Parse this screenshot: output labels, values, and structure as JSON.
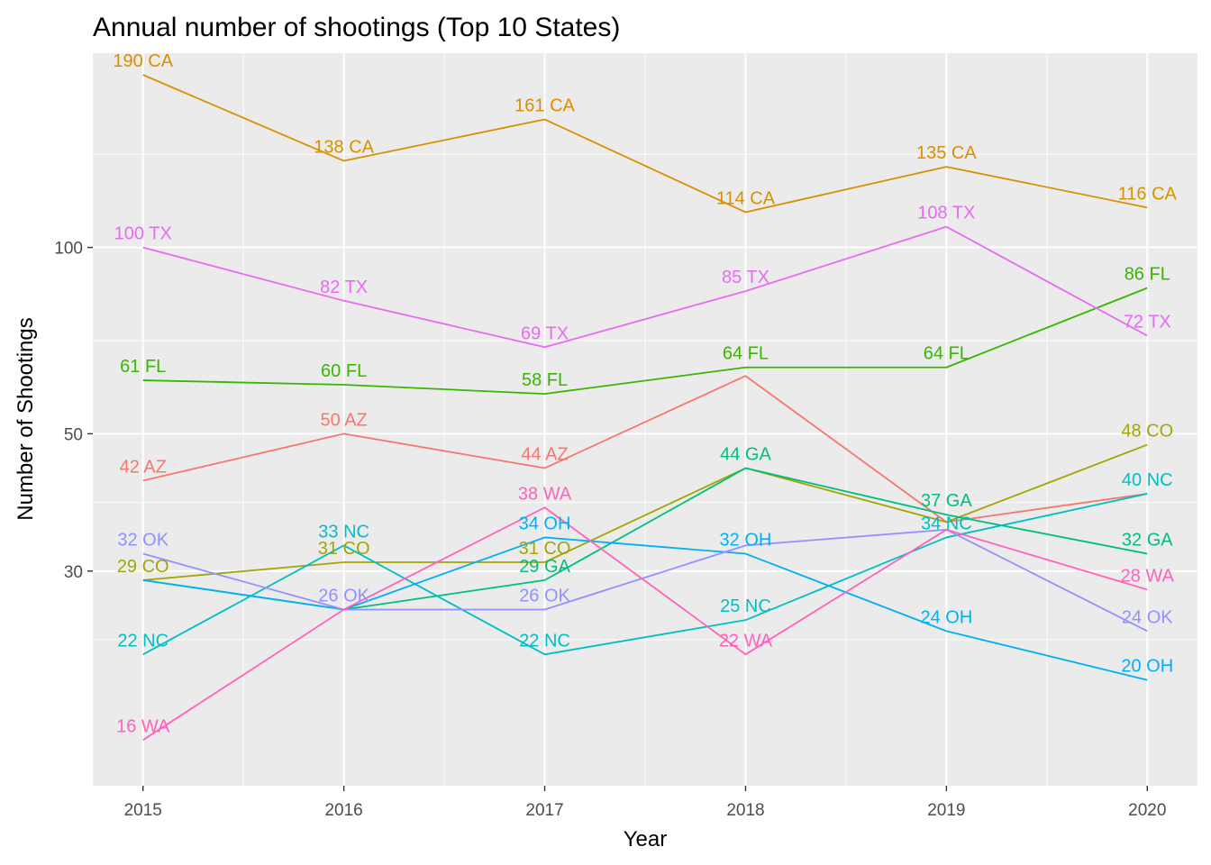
{
  "chart_data": {
    "type": "line",
    "title": "Annual number of shootings (Top 10 States)",
    "xlabel": "Year",
    "ylabel": "Number of Shootings",
    "x": [
      2015,
      2016,
      2017,
      2018,
      2019,
      2020
    ],
    "y_scale": "log",
    "xlim": [
      2014.75,
      2020.25
    ],
    "ylim": [
      13.5,
      206
    ],
    "y_ticks": [
      30,
      50,
      100
    ],
    "grid": true,
    "legend": "none",
    "series": [
      {
        "name": "AZ",
        "color": "#F8766D",
        "values": [
          42,
          50,
          44,
          62,
          36,
          40
        ],
        "labels": [
          "42 AZ",
          "50 AZ",
          "44 AZ",
          null,
          null,
          null
        ]
      },
      {
        "name": "CA",
        "color": "#D89000",
        "values": [
          190,
          138,
          161,
          114,
          135,
          116
        ],
        "labels": [
          "190 CA",
          "138 CA",
          "161 CA",
          "114 CA",
          "135 CA",
          "116 CA"
        ]
      },
      {
        "name": "CO",
        "color": "#A3A500",
        "values": [
          29,
          31,
          31,
          44,
          36,
          48
        ],
        "labels": [
          "29 CO",
          "31 CO",
          "31 CO",
          null,
          null,
          "48 CO"
        ]
      },
      {
        "name": "FL",
        "color": "#39B600",
        "values": [
          61,
          60,
          58,
          64,
          64,
          86
        ],
        "labels": [
          "61 FL",
          "60 FL",
          "58 FL",
          "64 FL",
          "64 FL",
          "86 FL"
        ]
      },
      {
        "name": "GA",
        "color": "#00BF7D",
        "values": [
          29,
          26,
          29,
          44,
          37,
          32
        ],
        "labels": [
          null,
          null,
          "29 GA",
          "44 GA",
          "37 GA",
          "32 GA"
        ]
      },
      {
        "name": "NC",
        "color": "#00BFC4",
        "values": [
          22,
          33,
          22,
          25,
          34,
          40
        ],
        "labels": [
          "22 NC",
          "33 NC",
          "22 NC",
          "25 NC",
          "34 NC",
          "40 NC"
        ]
      },
      {
        "name": "OH",
        "color": "#00B0F6",
        "values": [
          29,
          26,
          34,
          32,
          24,
          20
        ],
        "labels": [
          null,
          null,
          "34 OH",
          "32 OH",
          "24 OH",
          "20 OH"
        ]
      },
      {
        "name": "OK",
        "color": "#9590FF",
        "values": [
          32,
          26,
          26,
          33,
          35,
          24
        ],
        "labels": [
          "32 OK",
          "26 OK",
          "26 OK",
          null,
          null,
          "24 OK"
        ]
      },
      {
        "name": "TX",
        "color": "#E76BF3",
        "values": [
          100,
          82,
          69,
          85,
          108,
          72
        ],
        "labels": [
          "100 TX",
          "82 TX",
          "69 TX",
          "85 TX",
          "108 TX",
          "72 TX"
        ]
      },
      {
        "name": "WA",
        "color": "#FF62BC",
        "values": [
          16,
          26,
          38,
          22,
          35,
          28
        ],
        "labels": [
          "16 WA",
          null,
          "38 WA",
          "22 WA",
          null,
          "28 WA"
        ]
      }
    ]
  }
}
